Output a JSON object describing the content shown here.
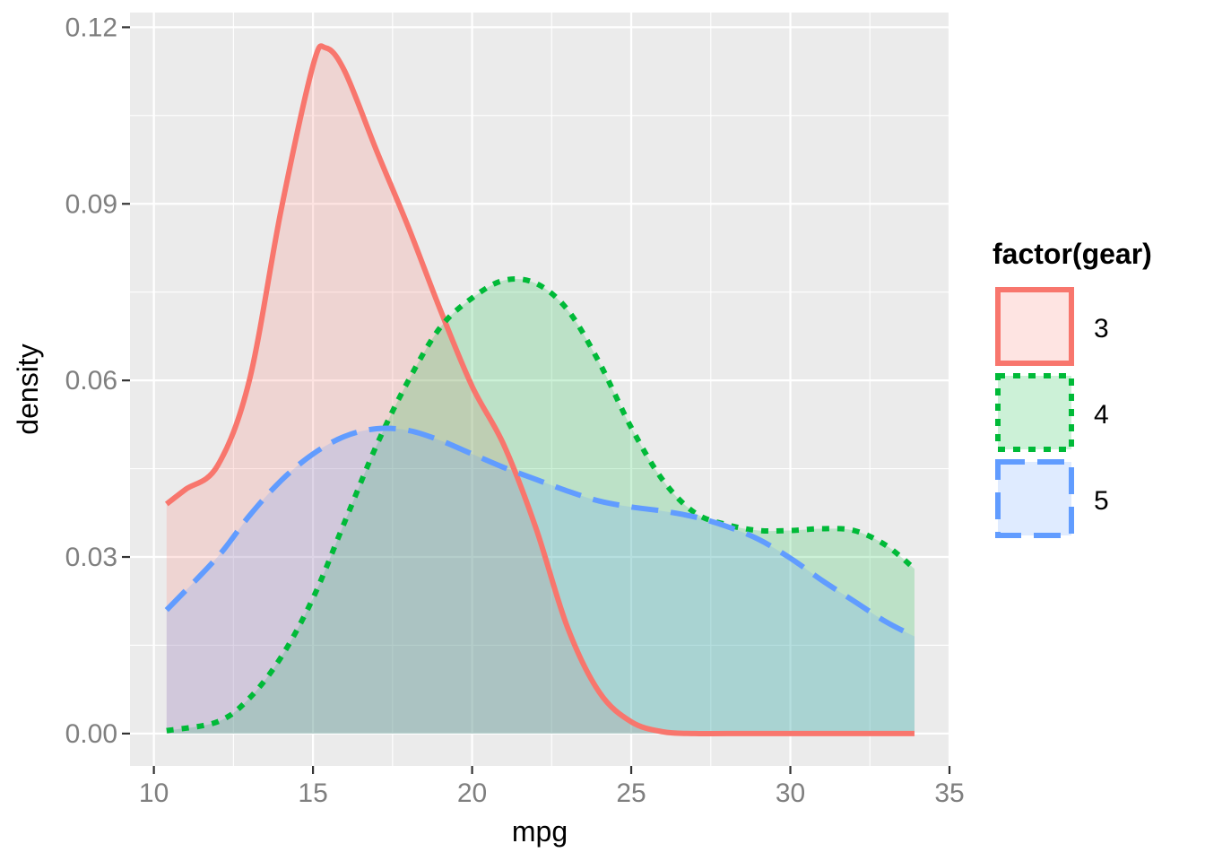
{
  "chart_data": {
    "type": "area",
    "xlabel": "mpg",
    "ylabel": "density",
    "xlim": [
      9.25,
      35.0
    ],
    "ylim": [
      -0.0055,
      0.1225
    ],
    "x_ticks": [
      10,
      15,
      20,
      25,
      30,
      35
    ],
    "x_tick_labels": [
      "10",
      "15",
      "20",
      "25",
      "30",
      "35"
    ],
    "y_ticks": [
      0,
      0.03,
      0.06,
      0.09,
      0.12
    ],
    "y_tick_labels": [
      "0.00",
      "0.03",
      "0.06",
      "0.09",
      "0.12"
    ],
    "grid": true,
    "panel_background": "#ebebeb",
    "legend": {
      "title": "factor(gear)",
      "position": "right"
    },
    "series": [
      {
        "name": "3",
        "color": "#f8766d",
        "line_style": "solid",
        "x": [
          10.4,
          11.0,
          12.0,
          13.0,
          14.0,
          15.0,
          15.4,
          16.0,
          17.0,
          18.0,
          19.0,
          20.0,
          21.0,
          22.0,
          23.0,
          24.0,
          25.0,
          26.0,
          27.0,
          28.0,
          30.0,
          32.0,
          33.9
        ],
        "y": [
          0.039,
          0.0415,
          0.0455,
          0.06,
          0.089,
          0.1135,
          0.1165,
          0.1125,
          0.099,
          0.086,
          0.072,
          0.059,
          0.049,
          0.035,
          0.018,
          0.007,
          0.002,
          0.0003,
          0.0,
          0.0,
          0.0,
          0.0,
          0.0
        ]
      },
      {
        "name": "4",
        "color": "#00ba38",
        "line_style": "dotted",
        "x": [
          10.4,
          12.0,
          13.0,
          14.0,
          15.0,
          16.0,
          17.0,
          18.0,
          19.0,
          20.0,
          21.0,
          22.0,
          23.0,
          24.0,
          25.0,
          26.0,
          27.0,
          28.0,
          29.0,
          30.0,
          31.0,
          32.0,
          33.0,
          33.9
        ],
        "y": [
          0.0005,
          0.002,
          0.006,
          0.013,
          0.023,
          0.036,
          0.049,
          0.06,
          0.069,
          0.074,
          0.077,
          0.0765,
          0.072,
          0.063,
          0.052,
          0.043,
          0.0375,
          0.0355,
          0.0345,
          0.0345,
          0.0348,
          0.0345,
          0.032,
          0.028
        ]
      },
      {
        "name": "5",
        "color": "#619cff",
        "line_style": "dashed",
        "x": [
          10.4,
          12.0,
          13.0,
          14.0,
          15.0,
          16.0,
          17.0,
          18.0,
          19.0,
          20.0,
          21.0,
          22.0,
          23.0,
          24.0,
          25.0,
          26.0,
          27.0,
          28.0,
          29.0,
          30.0,
          31.0,
          32.0,
          33.0,
          33.9
        ],
        "y": [
          0.021,
          0.03,
          0.037,
          0.043,
          0.0475,
          0.0505,
          0.0518,
          0.0515,
          0.0498,
          0.0475,
          0.0452,
          0.0432,
          0.0412,
          0.0395,
          0.0385,
          0.0378,
          0.0368,
          0.0352,
          0.033,
          0.0298,
          0.026,
          0.0225,
          0.019,
          0.0165
        ]
      }
    ]
  }
}
